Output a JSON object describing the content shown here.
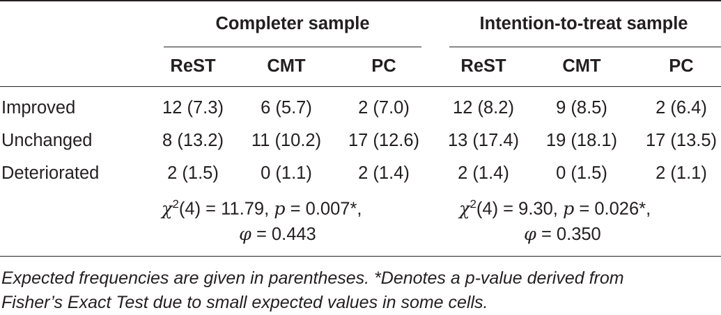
{
  "groups": {
    "completer": "Completer sample",
    "itt": "Intention-to-treat sample"
  },
  "columns": [
    "ReST",
    "CMT",
    "PC",
    "ReST",
    "CMT",
    "PC"
  ],
  "rows": [
    {
      "label": "Improved",
      "cells": [
        "12 (7.3)",
        "6 (5.7)",
        "2 (7.0)",
        "12 (8.2)",
        "9 (8.5)",
        "2 (6.4)"
      ]
    },
    {
      "label": "Unchanged",
      "cells": [
        "8 (13.2)",
        "11 (10.2)",
        "17 (12.6)",
        "13 (17.4)",
        "19 (18.1)",
        "17 (13.5)"
      ]
    },
    {
      "label": "Deteriorated",
      "cells": [
        "2 (1.5)",
        "0 (1.1)",
        "2 (1.4)",
        "2 (1.4)",
        "0 (1.5)",
        "2 (1.1)"
      ]
    }
  ],
  "stats": {
    "completer": {
      "chi_df": "(4) = 11.79, ",
      "p": "= 0.007*,",
      "phi": "= 0.443"
    },
    "itt": {
      "chi_df": "(4) = 9.30, ",
      "p": "= 0.026*,",
      "phi": "= 0.350"
    }
  },
  "symbols": {
    "chi": "χ",
    "sup2": "2",
    "p": "p",
    "phi": "φ"
  },
  "footnote": {
    "line1": "Expected frequencies are given in parentheses. *Denotes a p-value derived from",
    "line2": "Fisher’s Exact Test due to small expected values in some cells."
  }
}
